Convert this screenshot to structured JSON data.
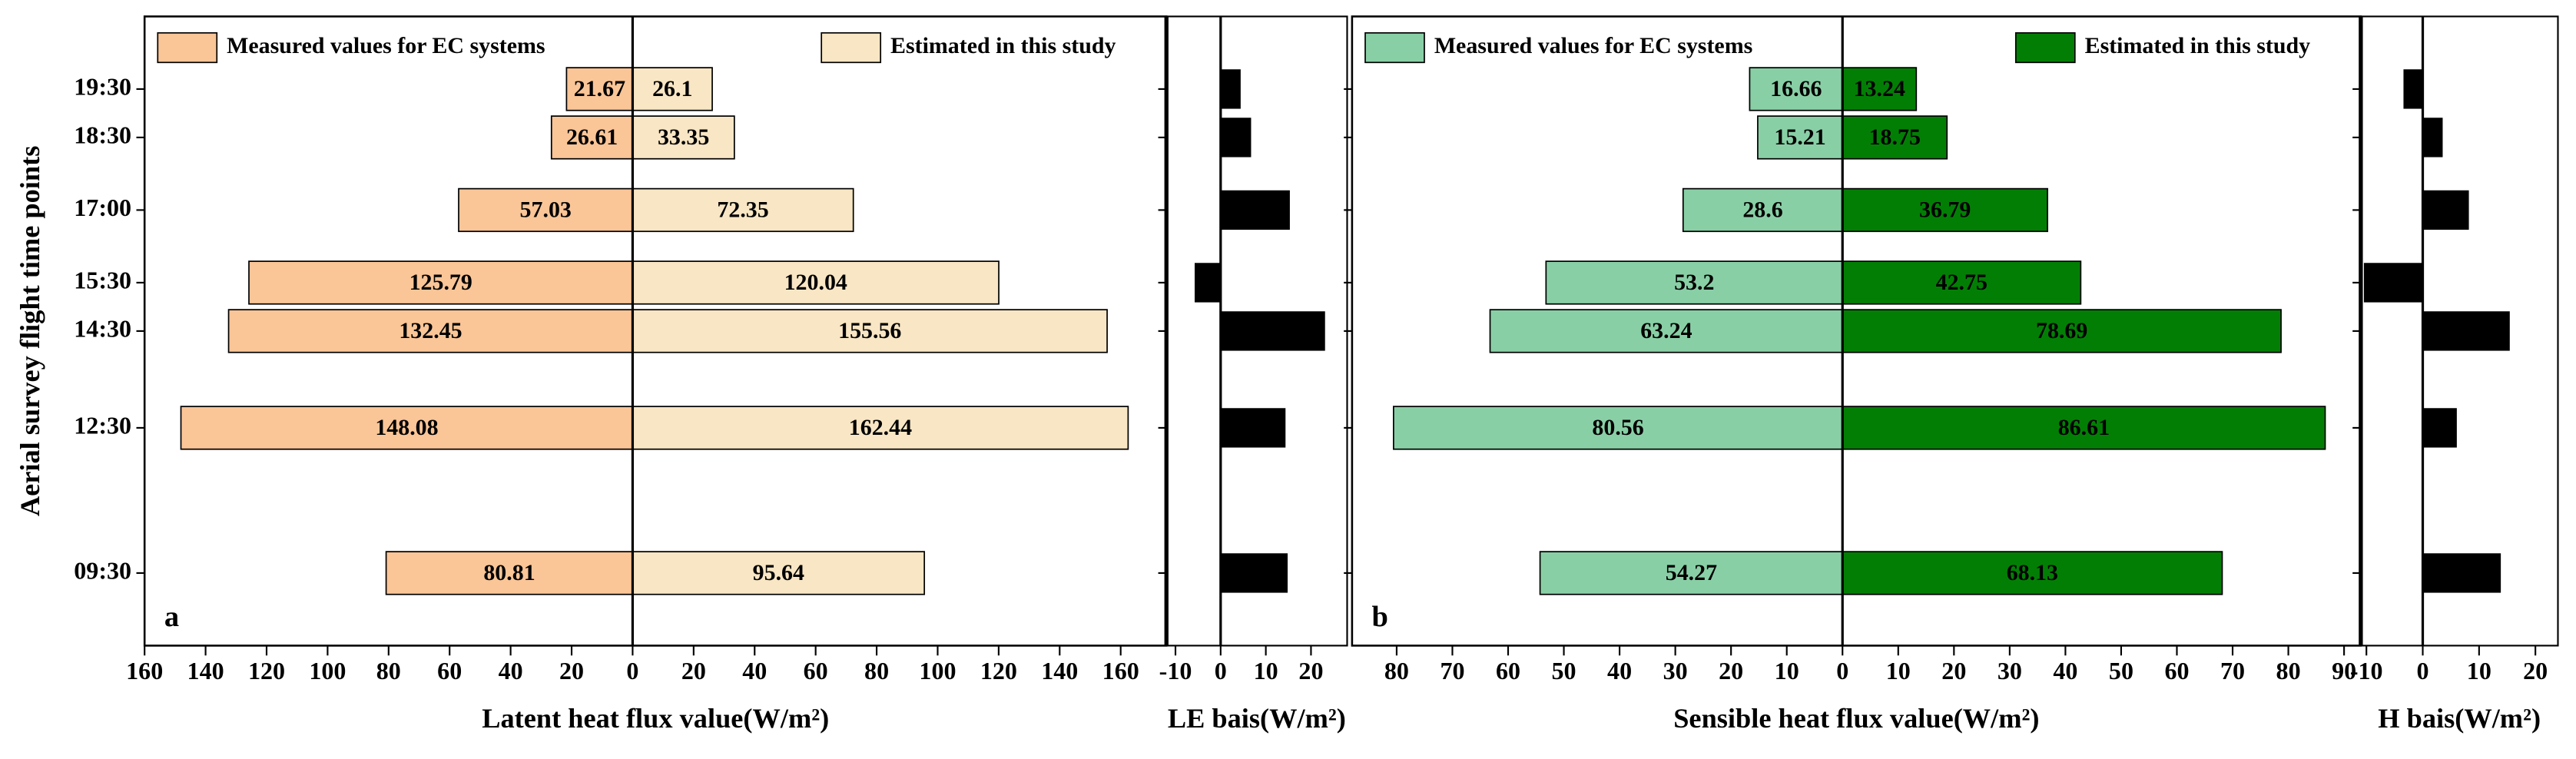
{
  "chart_data": [
    {
      "type": "butterfly",
      "panel": "a",
      "x": [
        9.5,
        12.5,
        14.5,
        15.5,
        17,
        18.5,
        19.5
      ],
      "xlim": [
        8,
        21
      ],
      "xticks": [
        {
          "value": 9.5,
          "label": "09:30"
        },
        {
          "value": 12.5,
          "label": "12:30"
        },
        {
          "value": 14.5,
          "label": "14:30"
        },
        {
          "value": 15.5,
          "label": "15:30"
        },
        {
          "value": 17,
          "label": "17:00"
        },
        {
          "value": 18.5,
          "label": "18:30"
        },
        {
          "value": 19.5,
          "label": "19:30"
        }
      ],
      "xlabel": "Aerial survey flight time points",
      "ylabel": "Latent heat flux value(W/m²)",
      "ylim": [
        0,
        175
      ],
      "yticks": [
        0,
        20,
        40,
        60,
        80,
        100,
        120,
        140,
        160
      ],
      "y2lim": [
        0,
        160
      ],
      "y2ticks": [
        20,
        40,
        60,
        80,
        100,
        120,
        140,
        160
      ],
      "series": [
        {
          "name": "Measured values for EC systems",
          "color": "#fac597",
          "axis": "y2",
          "values": [
            80.81,
            148.08,
            132.45,
            125.79,
            57.03,
            26.61,
            21.67
          ]
        },
        {
          "name": "Estimated in this study",
          "color": "#f8e6c4",
          "values": [
            95.64,
            162.44,
            155.56,
            120.04,
            72.35,
            33.35,
            26.1
          ]
        }
      ]
    },
    {
      "type": "bar",
      "x": [
        9.5,
        12.5,
        14.5,
        15.5,
        17,
        18.5,
        19.5
      ],
      "xlim": [
        8,
        21
      ],
      "ylabel": "LE bais(W/m²)",
      "ylim": [
        -12,
        28
      ],
      "yticks": [
        -10,
        0,
        10,
        20
      ],
      "color": "#000000",
      "values": [
        14.83,
        14.36,
        23.11,
        -5.75,
        15.32,
        6.74,
        4.43
      ]
    },
    {
      "type": "butterfly",
      "panel": "b",
      "x": [
        9.5,
        12.5,
        14.5,
        15.5,
        17,
        18.5,
        19.5
      ],
      "xlim": [
        8,
        21
      ],
      "ylabel": "Sensible heat flux value(W/m²)",
      "ylim": [
        0,
        93
      ],
      "yticks": [
        0,
        10,
        20,
        30,
        40,
        50,
        60,
        70,
        80,
        90
      ],
      "y2lim": [
        0,
        88
      ],
      "y2ticks": [
        10,
        20,
        30,
        40,
        50,
        60,
        70,
        80
      ],
      "series": [
        {
          "name": "Measured values for EC systems",
          "color": "#89cfa6",
          "axis": "y2",
          "values": [
            54.27,
            80.56,
            63.24,
            53.2,
            28.6,
            15.21,
            16.66
          ]
        },
        {
          "name": "Estimated in this study",
          "color": "#037e05",
          "values": [
            68.13,
            86.61,
            78.69,
            42.75,
            36.79,
            18.75,
            13.24
          ]
        }
      ]
    },
    {
      "type": "bar",
      "x": [
        9.5,
        12.5,
        14.5,
        15.5,
        17,
        18.5,
        19.5
      ],
      "xlim": [
        8,
        21
      ],
      "ylabel": "H bais(W/m²)",
      "ylim": [
        -11,
        24
      ],
      "yticks": [
        -10,
        0,
        10,
        20
      ],
      "color": "#000000",
      "values": [
        13.86,
        6.05,
        15.45,
        -10.45,
        8.19,
        3.54,
        -3.42
      ]
    }
  ]
}
